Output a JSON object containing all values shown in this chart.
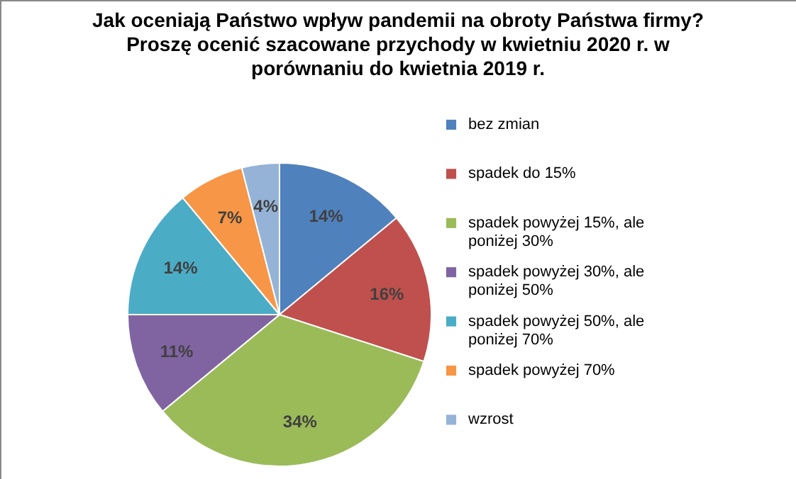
{
  "chart_data": {
    "type": "pie",
    "title": "Jak oceniają Państwo wpływ pandemii na obroty Państwa firmy? Proszę ocenić szacowane przychody w kwietniu 2020 r. w porównaniu do kwietnia 2019 r.",
    "categories": [
      "bez zmian",
      "spadek do 15%",
      "spadek powyżej 15%, ale poniżej 30%",
      "spadek powyżej 30%, ale poniżej 50%",
      "spadek powyżej 50%, ale poniżej 70%",
      "spadek powyżej 70%",
      "wzrost"
    ],
    "values": [
      14,
      16,
      34,
      11,
      14,
      7,
      4
    ],
    "value_labels": [
      "14%",
      "16%",
      "34%",
      "11%",
      "14%",
      "7%",
      "4%"
    ],
    "colors": [
      "#4f81bd",
      "#c0504d",
      "#9bbb59",
      "#8064a2",
      "#4bacc6",
      "#f79646",
      "#95b3d7"
    ],
    "legend": "right"
  }
}
